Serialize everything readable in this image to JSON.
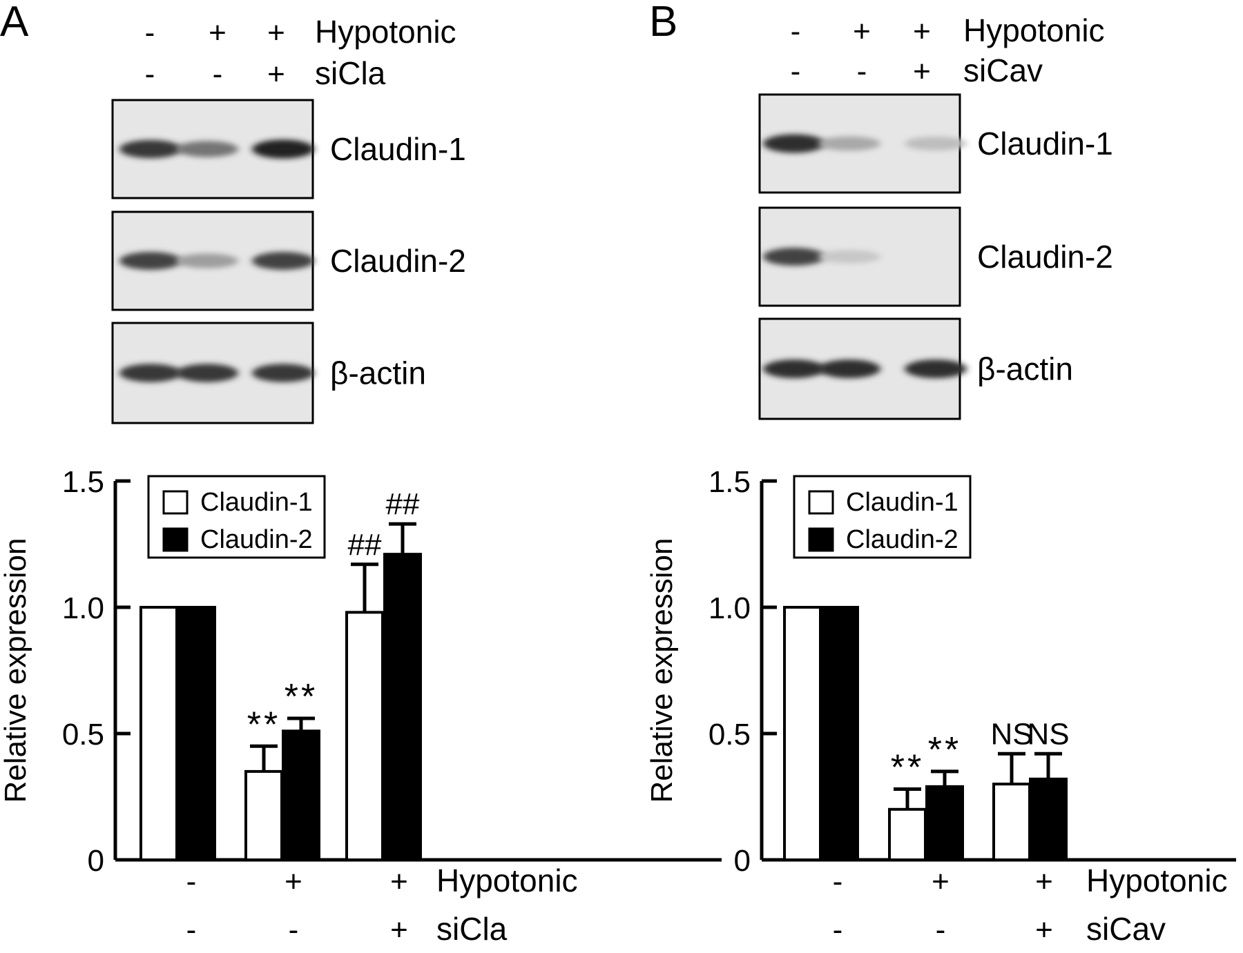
{
  "panels": [
    {
      "letter": "A",
      "condition_rows": [
        {
          "label": "Hypotonic",
          "signs": [
            "-",
            "+",
            "+"
          ]
        },
        {
          "label": "siCla",
          "signs": [
            "-",
            "-",
            "+"
          ]
        }
      ],
      "blots": [
        {
          "label": "Claudin-1",
          "bands": [
            0.85,
            0.55,
            0.95
          ]
        },
        {
          "label": "Claudin-2",
          "bands": [
            0.8,
            0.35,
            0.8
          ]
        },
        {
          "label": "β-actin",
          "bands": [
            0.85,
            0.85,
            0.85
          ]
        }
      ],
      "chart_data": {
        "type": "bar",
        "ylabel": "Relative expression",
        "ylim": [
          0,
          1.5
        ],
        "yticks": [
          "0",
          "0.5",
          "1.0",
          "1.5"
        ],
        "legend_position": "top-left",
        "series": [
          {
            "name": "Claudin-1",
            "color": "#ffffff",
            "values": [
              1.0,
              0.35,
              0.98
            ],
            "errors": [
              0,
              0.1,
              0.19
            ],
            "annotations": [
              "",
              "**",
              "##"
            ]
          },
          {
            "name": "Claudin-2",
            "color": "#000000",
            "values": [
              1.0,
              0.51,
              1.21
            ],
            "errors": [
              0,
              0.05,
              0.12
            ],
            "annotations": [
              "",
              "**",
              "##"
            ]
          }
        ],
        "x_condition_rows": [
          {
            "label": "Hypotonic",
            "signs": [
              "-",
              "+",
              "+"
            ]
          },
          {
            "label": "siCla",
            "signs": [
              "-",
              "-",
              "+"
            ]
          }
        ]
      }
    },
    {
      "letter": "B",
      "condition_rows": [
        {
          "label": "Hypotonic",
          "signs": [
            "-",
            "+",
            "+"
          ]
        },
        {
          "label": "siCav",
          "signs": [
            "-",
            "-",
            "+"
          ]
        }
      ],
      "blots": [
        {
          "label": "Claudin-1",
          "bands": [
            0.9,
            0.3,
            0.2
          ]
        },
        {
          "label": "Claudin-2",
          "bands": [
            0.8,
            0.15,
            0.0
          ]
        },
        {
          "label": "β-actin",
          "bands": [
            0.9,
            0.9,
            0.9
          ]
        }
      ],
      "chart_data": {
        "type": "bar",
        "ylabel": "Relative expression",
        "ylim": [
          0,
          1.5
        ],
        "yticks": [
          "0",
          "0.5",
          "1.0",
          "1.5"
        ],
        "legend_position": "top-left",
        "series": [
          {
            "name": "Claudin-1",
            "color": "#ffffff",
            "values": [
              1.0,
              0.2,
              0.3
            ],
            "errors": [
              0,
              0.08,
              0.12
            ],
            "annotations": [
              "",
              "**",
              "NS"
            ]
          },
          {
            "name": "Claudin-2",
            "color": "#000000",
            "values": [
              1.0,
              0.29,
              0.32
            ],
            "errors": [
              0,
              0.06,
              0.1
            ],
            "annotations": [
              "",
              "**",
              "NS"
            ]
          }
        ],
        "x_condition_rows": [
          {
            "label": "Hypotonic",
            "signs": [
              "-",
              "+",
              "+"
            ]
          },
          {
            "label": "siCav",
            "signs": [
              "-",
              "-",
              "+"
            ]
          }
        ]
      }
    }
  ]
}
